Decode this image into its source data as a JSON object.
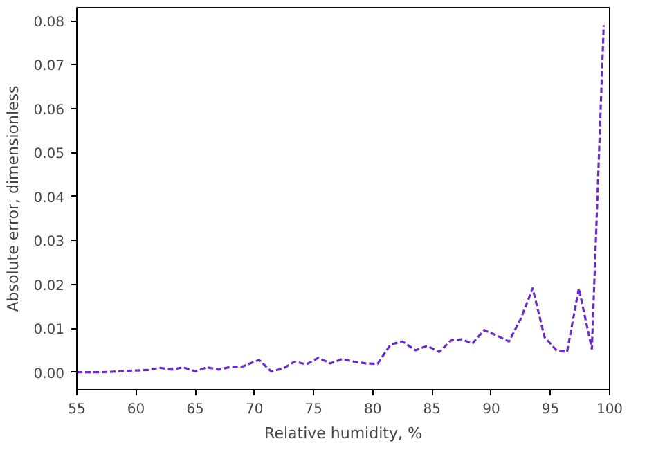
{
  "chart_data": {
    "type": "line",
    "xlabel": "Relative humidity, %",
    "ylabel": "Absolute error, dimensionless",
    "x": [
      55,
      56,
      57,
      58,
      59,
      60,
      61,
      62,
      63,
      64,
      65,
      66,
      67,
      68,
      69,
      70.4,
      71.4,
      72.4,
      73.4,
      74.4,
      75.4,
      76.4,
      77.4,
      78.4,
      79.4,
      80.4,
      81.5,
      82.5,
      83.6,
      84.6,
      85.6,
      86.6,
      87.5,
      88.4,
      89.4,
      90.5,
      91.5,
      92.5,
      93.5,
      94.5,
      95.5,
      96.4,
      97.4,
      98.5,
      99.5
    ],
    "series": [
      {
        "color": "#6b2bc8",
        "values": [
          0,
          0,
          0,
          0.0001,
          0.0003,
          0.0004,
          0.0005,
          0.001,
          0.0006,
          0.0011,
          0.0002,
          0.0011,
          0.0006,
          0.0012,
          0.0013,
          0.0028,
          0.0002,
          0.0008,
          0.0024,
          0.0018,
          0.0033,
          0.002,
          0.003,
          0.0024,
          0.002,
          0.0019,
          0.0063,
          0.007,
          0.005,
          0.006,
          0.0046,
          0.0072,
          0.0075,
          0.0065,
          0.0096,
          0.0083,
          0.007,
          0.0122,
          0.0191,
          0.008,
          0.005,
          0.0046,
          0.0191,
          0.0053,
          0.079
        ]
      }
    ],
    "xlim": [
      55,
      100
    ],
    "xticks": [
      55,
      60,
      65,
      70,
      75,
      80,
      85,
      90,
      95,
      100
    ],
    "ylim": [
      -0.004,
      0.083
    ],
    "yticks": [
      {
        "value": 0,
        "label": "0.00"
      },
      {
        "value": 0.01,
        "label": "0.01"
      },
      {
        "value": 0.02,
        "label": "0.02"
      },
      {
        "value": 0.03,
        "label": "0.03"
      },
      {
        "value": 0.04,
        "label": "0.04"
      },
      {
        "value": 0.05,
        "label": "0.05"
      },
      {
        "value": 0.06,
        "label": "0.06"
      },
      {
        "value": 0.07,
        "label": "0.07"
      },
      {
        "value": 0.08,
        "label": "0.08"
      }
    ],
    "grid": false,
    "line_style": "dashed"
  }
}
